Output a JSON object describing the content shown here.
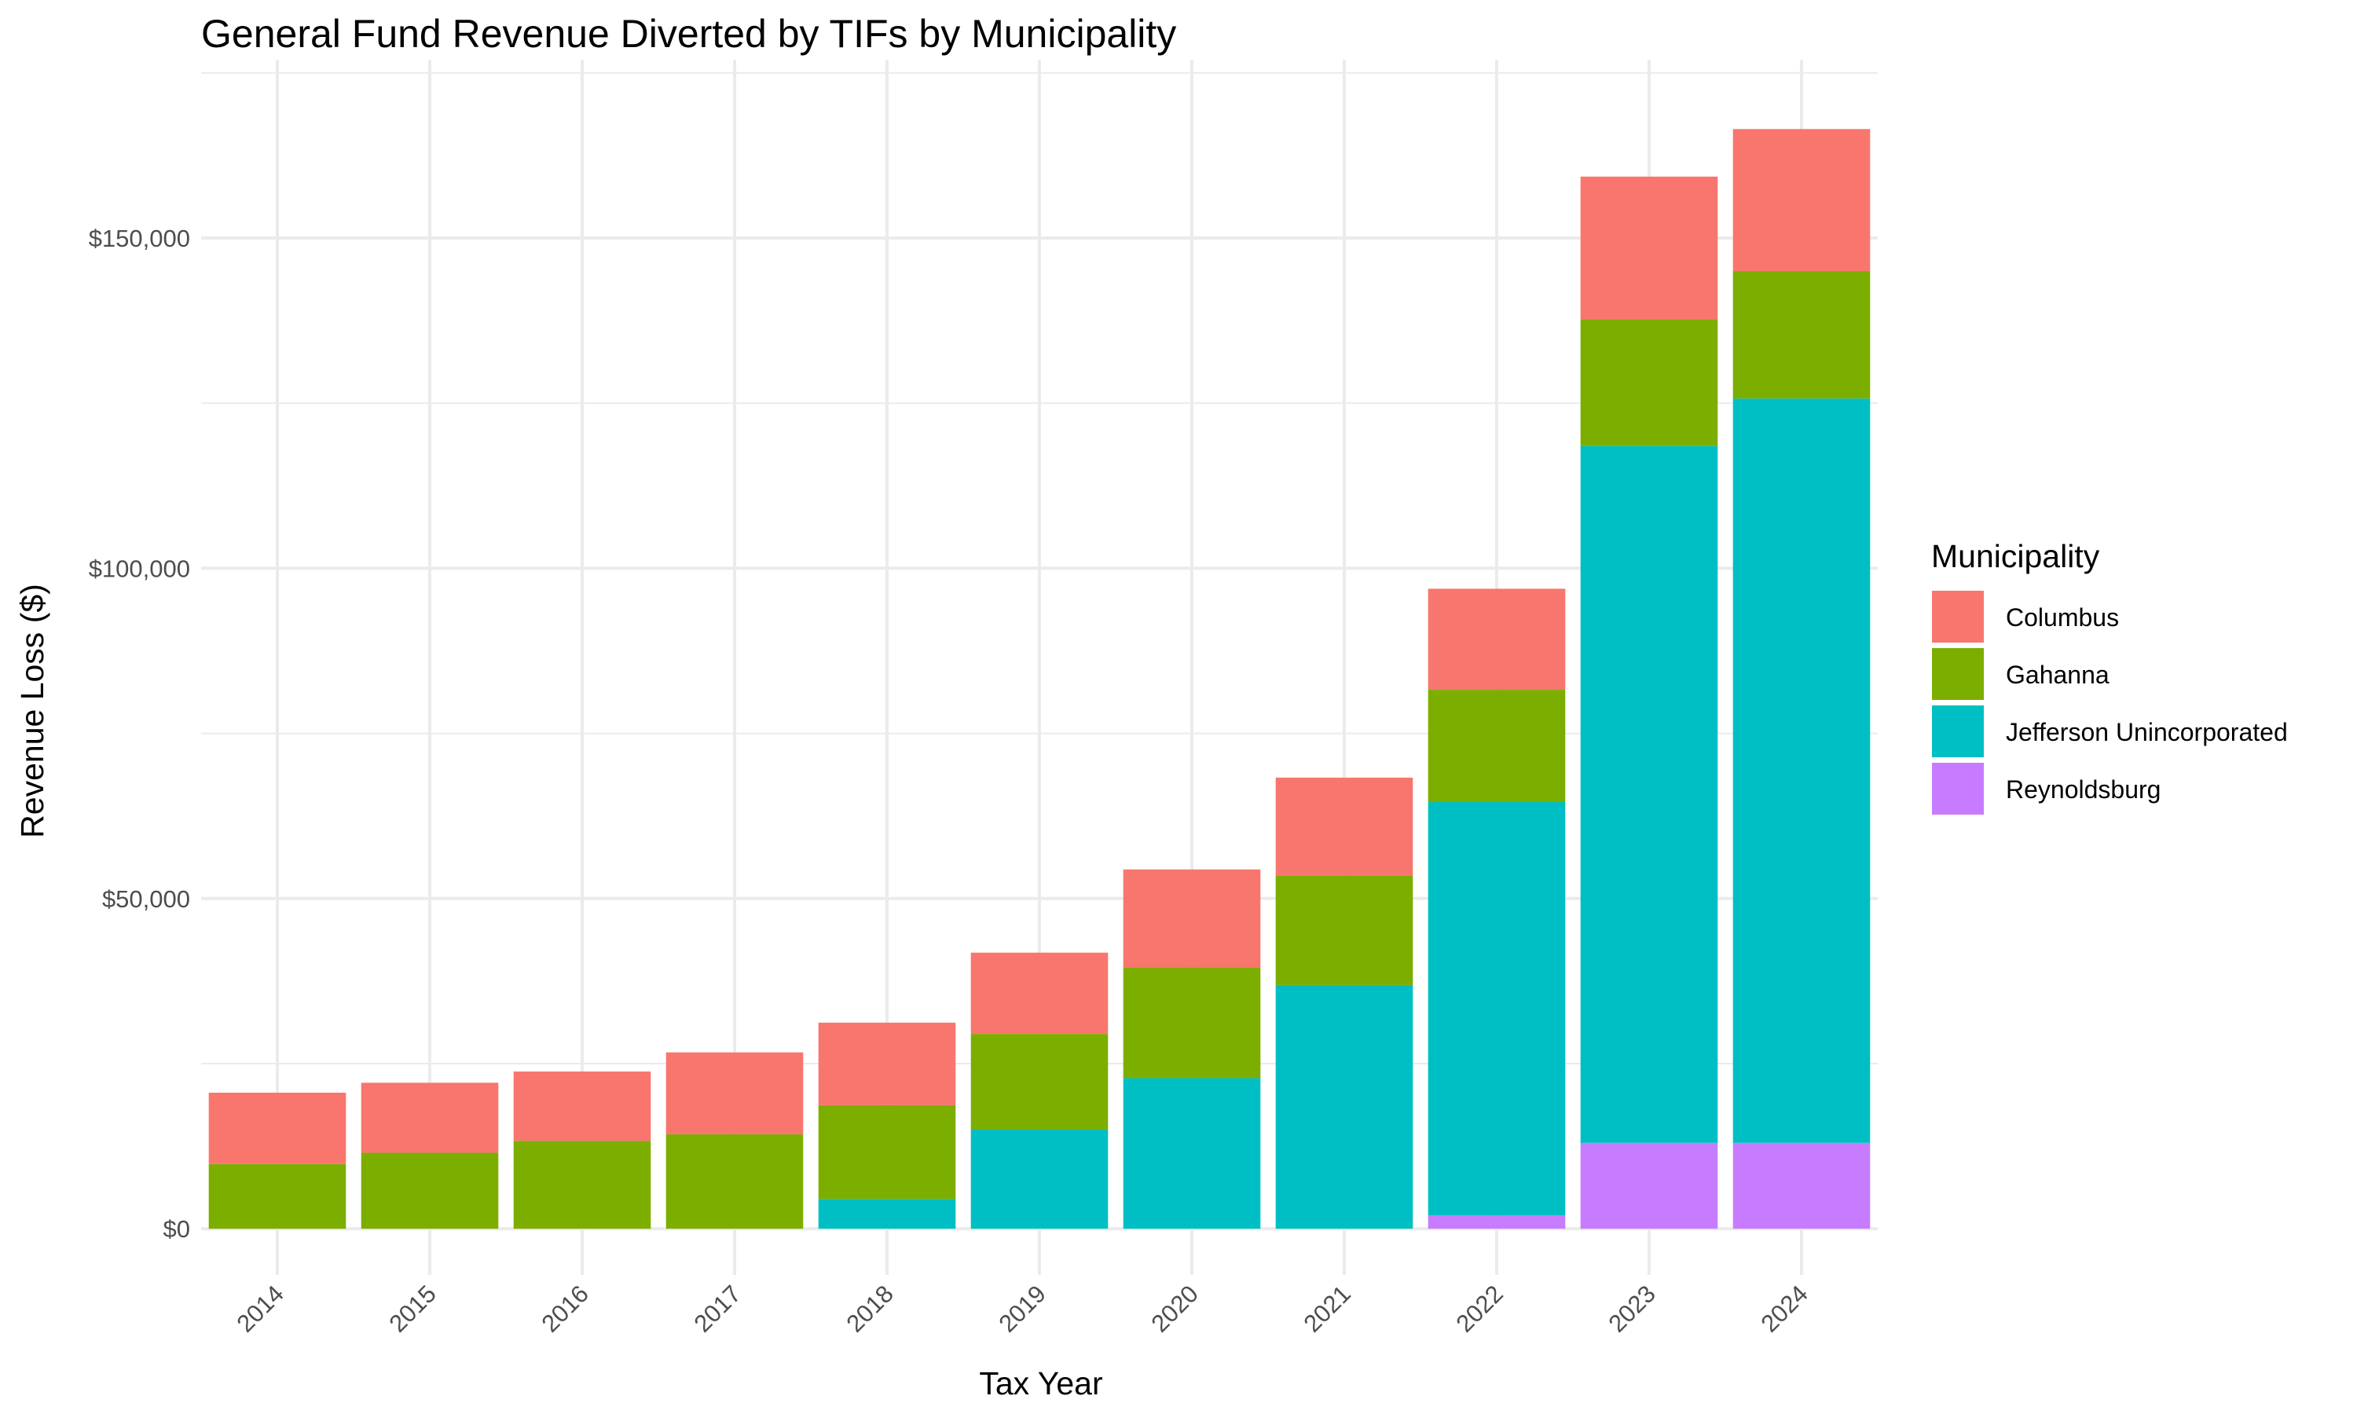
{
  "title": "General Fund Revenue Diverted by TIFs by Municipality",
  "chart_data": {
    "type": "bar",
    "stacked": true,
    "title": "General Fund Revenue Diverted by TIFs by Municipality",
    "xlabel": "Tax Year",
    "ylabel": "Revenue Loss ($)",
    "ylim": [
      -7000,
      177000
    ],
    "y_ticks": [
      0,
      50000,
      100000,
      150000
    ],
    "y_tick_labels": [
      "$0",
      "$50,000",
      "$100,000",
      "$150,000"
    ],
    "grid": true,
    "legend_position": "right",
    "legend_title": "Municipality",
    "categories": [
      "2014",
      "2015",
      "2016",
      "2017",
      "2018",
      "2019",
      "2020",
      "2021",
      "2022",
      "2023",
      "2024"
    ],
    "series": [
      {
        "name": "Reynoldsburg",
        "color": "#C77CFF",
        "values": [
          0,
          0,
          0,
          0,
          0,
          0,
          0,
          0,
          2000,
          13000,
          13000
        ]
      },
      {
        "name": "Jefferson Unincorporated",
        "color": "#00BFC4",
        "values": [
          0,
          0,
          0,
          0,
          4500,
          15000,
          22800,
          36900,
          62600,
          105500,
          112700
        ]
      },
      {
        "name": "Gahanna",
        "color": "#7CAE00",
        "values": [
          9800,
          11500,
          13300,
          14300,
          14200,
          14500,
          16800,
          16600,
          17000,
          19200,
          19300
        ]
      },
      {
        "name": "Columbus",
        "color": "#F8766D",
        "values": [
          10800,
          10600,
          10500,
          12400,
          12500,
          12300,
          14800,
          14800,
          15300,
          21600,
          21500
        ]
      }
    ],
    "legend_order": [
      "Columbus",
      "Gahanna",
      "Jefferson Unincorporated",
      "Reynoldsburg"
    ]
  }
}
